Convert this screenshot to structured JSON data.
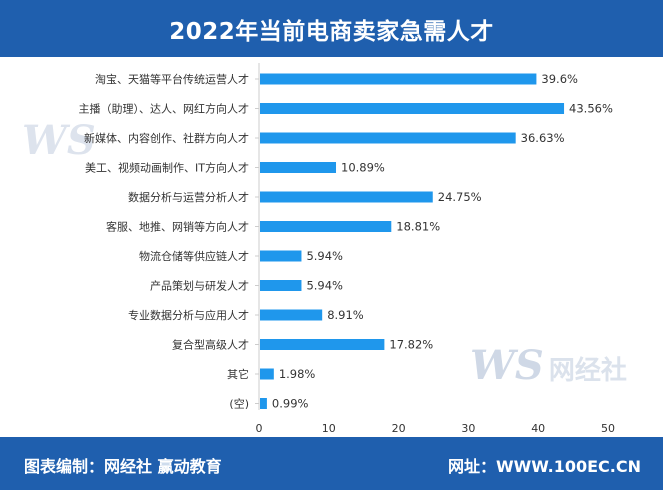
{
  "header": {
    "title": "2022年当前电商卖家急需人才"
  },
  "footer": {
    "left_text": "图表编制：网经社 赢动教育",
    "right_text": "网址：WWW.100EC.CN"
  },
  "watermark": {
    "logo_letters": "WS",
    "brand": "网经社",
    "url": "WWW.100EC.CN"
  },
  "colors": {
    "header_bg": "#1f5fae",
    "bar": "#1f97ec",
    "text": "#333333",
    "grid": "#cccccc"
  },
  "chart_data": {
    "type": "bar",
    "orientation": "horizontal",
    "title": "2022年当前电商卖家急需人才",
    "categories": [
      "淘宝、天猫等平台传统运营人才",
      "主播（助理）、达人、网红方向人才",
      "新媒体、内容创作、社群方向人才",
      "美工、视频动画制作、IT方向人才",
      "数据分析与运营分析人才",
      "客服、地推、网销等方向人才",
      "物流仓储等供应链人才",
      "产品策划与研发人才",
      "专业数据分析与应用人才",
      "复合型高级人才",
      "其它",
      "(空)"
    ],
    "values": [
      39.6,
      43.56,
      36.63,
      10.89,
      24.75,
      18.81,
      5.94,
      5.94,
      8.91,
      17.82,
      1.98,
      0.99
    ],
    "value_labels": [
      "39.6%",
      "43.56%",
      "36.63%",
      "10.89%",
      "24.75%",
      "18.81%",
      "5.94%",
      "5.94%",
      "8.91%",
      "17.82%",
      "1.98%",
      "0.99%"
    ],
    "xlim": [
      0,
      50
    ],
    "xticks": [
      "0",
      "10",
      "20",
      "30",
      "40",
      "50"
    ],
    "xlabel": "",
    "ylabel": "",
    "grid": false,
    "legend": "none"
  }
}
